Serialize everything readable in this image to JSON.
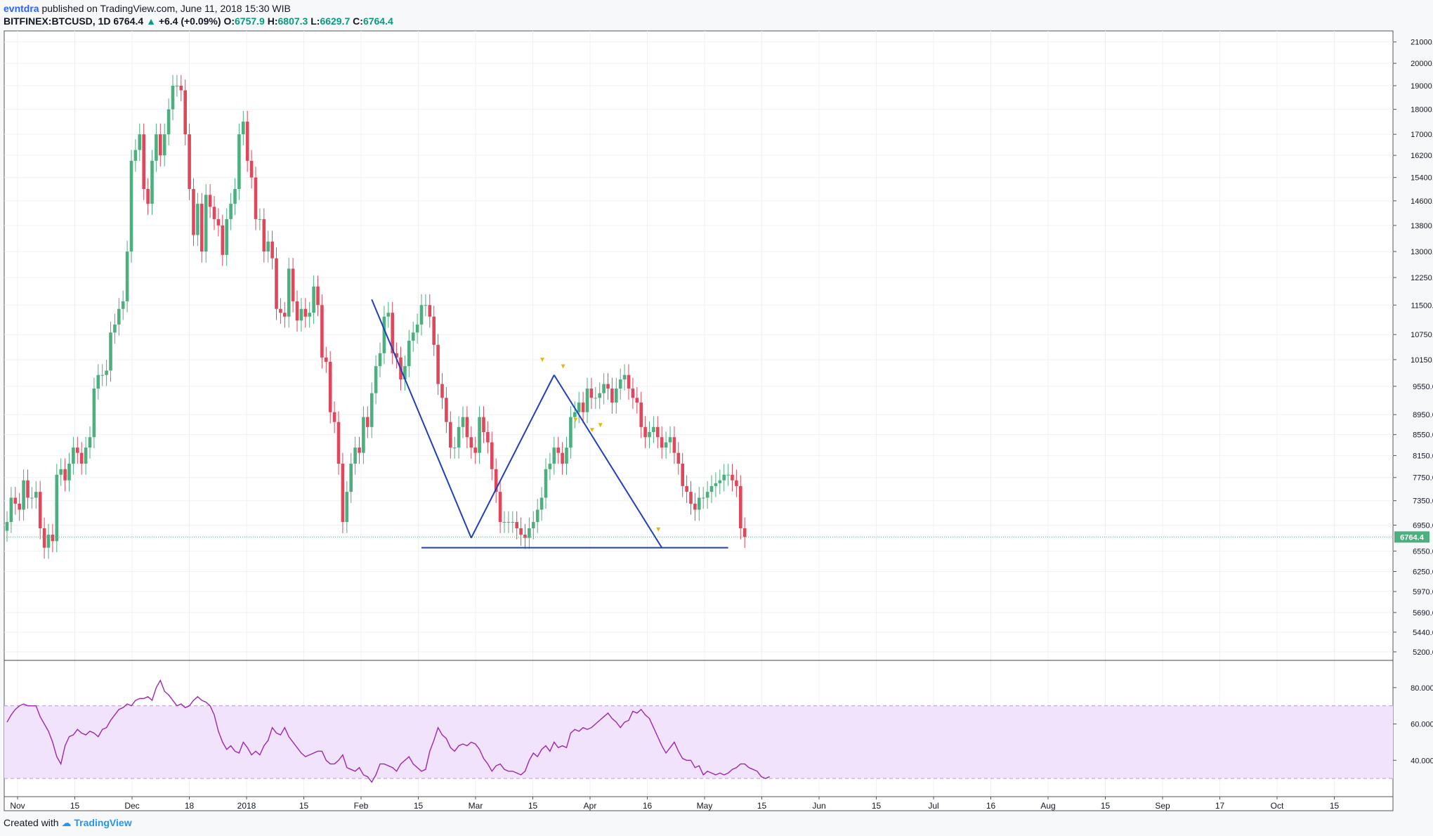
{
  "header": {
    "author": "evntdra",
    "published": " published on TradingView.com, June 11, 2018 15:30 WIB",
    "symbol": "BITFINEX:BTCUSD, 1D",
    "last": "6764.4",
    "change": "+6.4 (+0.09%)",
    "o_label": "O:",
    "o": "6757.9",
    "h_label": "H:",
    "h": "6807.3",
    "l_label": "L:",
    "l": "6629.7",
    "c_label": "C:",
    "c": "6764.4"
  },
  "footer": {
    "created_with": "Created with",
    "brand": "TradingView"
  },
  "colors": {
    "up": "#4caf7d",
    "down": "#e0475a",
    "trendline": "#1f3fbf",
    "rsi": "#9c27b0",
    "rsi_band": "#f1e3fb",
    "marker": "#e6b800"
  },
  "chart_data": [
    {
      "type": "candlestick",
      "symbol": "BITFINEX:BTCUSD",
      "interval": "1D",
      "scale": "log",
      "y_ticks": [
        21000.0,
        20000.0,
        19000.0,
        18000.0,
        17000.0,
        16200.0,
        15400.0,
        14600.0,
        13800.0,
        13000.0,
        12250.0,
        11500.0,
        10750.0,
        10150.0,
        9550.0,
        8950.0,
        8550.0,
        8150.0,
        7750.0,
        7350.0,
        6950.0,
        6550.0,
        6250.0,
        5970.0,
        5690.0,
        5440.0,
        5200.0
      ],
      "y_tick_labels": [
        "21000.0",
        "20000.0",
        "19000.0",
        "18000.0",
        "17000.0",
        "16200.0",
        "15400.0",
        "14600.0",
        "13800.0",
        "13000.0",
        "12250.0",
        "11500.0",
        "10750.0",
        "10150.0",
        "9550.0",
        "8950.0",
        "8550.0",
        "8150.0",
        "7750.0",
        "7350.0",
        "6950.0",
        "6550.0",
        "6250.0",
        "5970.0",
        "5690.0",
        "5440.0",
        "5200.0"
      ],
      "x_ticks": [
        "Nov",
        "15",
        "Dec",
        "18",
        "2018",
        "15",
        "Feb",
        "15",
        "Mar",
        "15",
        "Apr",
        "16",
        "May",
        "15",
        "Jun",
        "15",
        "Jul",
        "16",
        "Aug",
        "15",
        "Sep",
        "17",
        "Oct",
        "15"
      ],
      "last_price_label": "6764.4",
      "grid": true,
      "closes": [
        7000,
        7400,
        7300,
        7200,
        7700,
        7400,
        7400,
        7500,
        6900,
        6600,
        6800,
        6700,
        7800,
        7900,
        7700,
        8000,
        8300,
        8200,
        8000,
        8300,
        8500,
        9500,
        9800,
        9800,
        9900,
        10800,
        11000,
        11400,
        11600,
        13000,
        16000,
        16400,
        17000,
        15000,
        14500,
        16000,
        17000,
        16200,
        17000,
        18000,
        19000,
        19000,
        18800,
        17000,
        15000,
        13500,
        14500,
        13000,
        14800,
        14400,
        14000,
        13800,
        12900,
        14000,
        14500,
        15000,
        17000,
        17500,
        16000,
        15400,
        14000,
        14000,
        13000,
        13300,
        12800,
        11400,
        11300,
        11200,
        12500,
        11600,
        11100,
        11400,
        11200,
        11300,
        12000,
        11500,
        10200,
        10100,
        9000,
        8800,
        8000,
        7000,
        7500,
        8000,
        8300,
        8200,
        8900,
        8700,
        9400,
        10000,
        10300,
        11200,
        11300,
        10300,
        10200,
        9700,
        10000,
        10600,
        10800,
        11000,
        11500,
        11500,
        11200,
        10500,
        9600,
        9300,
        8800,
        8300,
        8300,
        8700,
        8900,
        8500,
        8300,
        8200,
        8900,
        8600,
        8400,
        7900,
        7500,
        7000,
        7000,
        7000,
        7000,
        6900,
        6800,
        6750,
        6900,
        7000,
        7200,
        7400,
        7900,
        8000,
        8300,
        8200,
        8000,
        8300,
        8900,
        9000,
        9200,
        9000,
        9500,
        9300,
        9300,
        9400,
        9600,
        9500,
        9200,
        9500,
        9700,
        9800,
        9500,
        9300,
        9200,
        8700,
        8500,
        8600,
        8700,
        8500,
        8300,
        8400,
        8500,
        8200,
        8000,
        7600,
        7500,
        7300,
        7200,
        7400,
        7400,
        7500,
        7600,
        7650,
        7700,
        7800,
        7800,
        7700,
        7600,
        6900,
        6764
      ]
    },
    {
      "type": "line",
      "name": "RSI",
      "y_ticks": [
        80.0,
        60.0,
        40.0
      ],
      "y_tick_labels": [
        "80.0000",
        "60.0000",
        "40.0000"
      ],
      "band": [
        30,
        70
      ],
      "values": [
        61,
        65,
        68,
        70,
        71,
        70,
        70,
        70,
        64,
        60,
        56,
        50,
        42,
        38,
        48,
        53,
        54,
        57,
        55,
        54,
        56,
        55,
        53,
        57,
        58,
        62,
        65,
        68,
        69,
        71,
        70,
        73,
        74,
        74,
        75,
        73,
        80,
        84,
        78,
        76,
        73,
        70,
        71,
        69,
        70,
        73,
        75,
        73,
        72,
        70,
        65,
        56,
        50,
        46,
        48,
        45,
        44,
        50,
        47,
        43,
        45,
        43,
        48,
        51,
        58,
        55,
        54,
        58,
        53,
        50,
        47,
        44,
        42,
        43,
        44,
        45,
        45,
        40,
        38,
        38,
        40,
        43,
        36,
        35,
        34,
        36,
        32,
        31,
        28,
        32,
        38,
        38,
        37,
        36,
        34,
        38,
        40,
        42,
        38,
        36,
        34,
        35,
        45,
        51,
        58,
        54,
        52,
        47,
        45,
        48,
        49,
        48,
        50,
        49,
        46,
        41,
        38,
        34,
        37,
        38,
        35,
        34,
        34,
        33,
        32,
        34,
        40,
        44,
        42,
        46,
        48,
        45,
        50,
        47,
        48,
        47,
        55,
        57,
        56,
        58,
        57,
        58,
        60,
        62,
        64,
        66,
        63,
        61,
        58,
        61,
        62,
        67,
        66,
        68,
        65,
        63,
        58,
        53,
        48,
        44,
        47,
        50,
        45,
        41,
        40,
        40,
        36,
        37,
        32,
        34,
        33,
        32,
        33,
        32,
        33,
        35,
        36,
        38,
        38,
        36,
        35,
        34,
        31,
        30,
        31
      ]
    }
  ]
}
